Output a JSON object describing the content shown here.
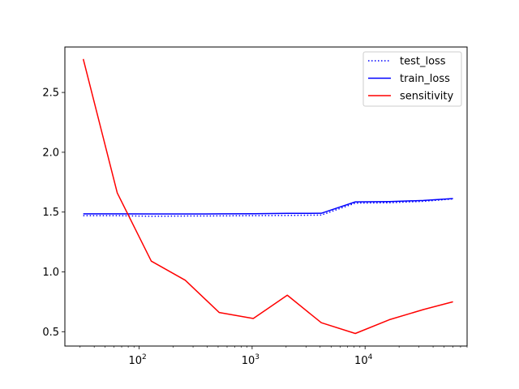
{
  "chart_data": {
    "type": "line",
    "title": "",
    "xlabel": "",
    "ylabel": "",
    "xscale": "log",
    "xlim": [
      22,
      80000
    ],
    "ylim": [
      0.38,
      2.88
    ],
    "grid": false,
    "legend_position": "top-right",
    "x": [
      32,
      64,
      128,
      256,
      512,
      1024,
      2048,
      4096,
      8192,
      16384,
      32768,
      60000
    ],
    "series": [
      {
        "name": "test_loss",
        "style": "dotted",
        "color": "#0000ff",
        "values": [
          1.47,
          1.47,
          1.465,
          1.467,
          1.468,
          1.47,
          1.472,
          1.475,
          1.575,
          1.578,
          1.59,
          1.61
        ]
      },
      {
        "name": "train_loss",
        "style": "solid",
        "color": "#0000ff",
        "values": [
          1.485,
          1.485,
          1.484,
          1.484,
          1.485,
          1.486,
          1.489,
          1.49,
          1.585,
          1.588,
          1.597,
          1.613
        ]
      },
      {
        "name": "sensitivity",
        "style": "solid",
        "color": "#ff0000",
        "values": [
          2.78,
          1.66,
          1.09,
          0.93,
          0.66,
          0.61,
          0.805,
          0.575,
          0.485,
          0.6,
          0.685,
          0.75
        ]
      }
    ],
    "y_ticks": [
      {
        "value": 0.5,
        "label": "0.5"
      },
      {
        "value": 1.0,
        "label": "1.0"
      },
      {
        "value": 1.5,
        "label": "1.5"
      },
      {
        "value": 2.0,
        "label": "2.0"
      },
      {
        "value": 2.5,
        "label": "2.5"
      }
    ],
    "x_ticks": [
      {
        "value": 100,
        "base": "10",
        "exp": "2"
      },
      {
        "value": 1000,
        "base": "10",
        "exp": "3"
      },
      {
        "value": 10000,
        "base": "10",
        "exp": "4"
      }
    ]
  }
}
